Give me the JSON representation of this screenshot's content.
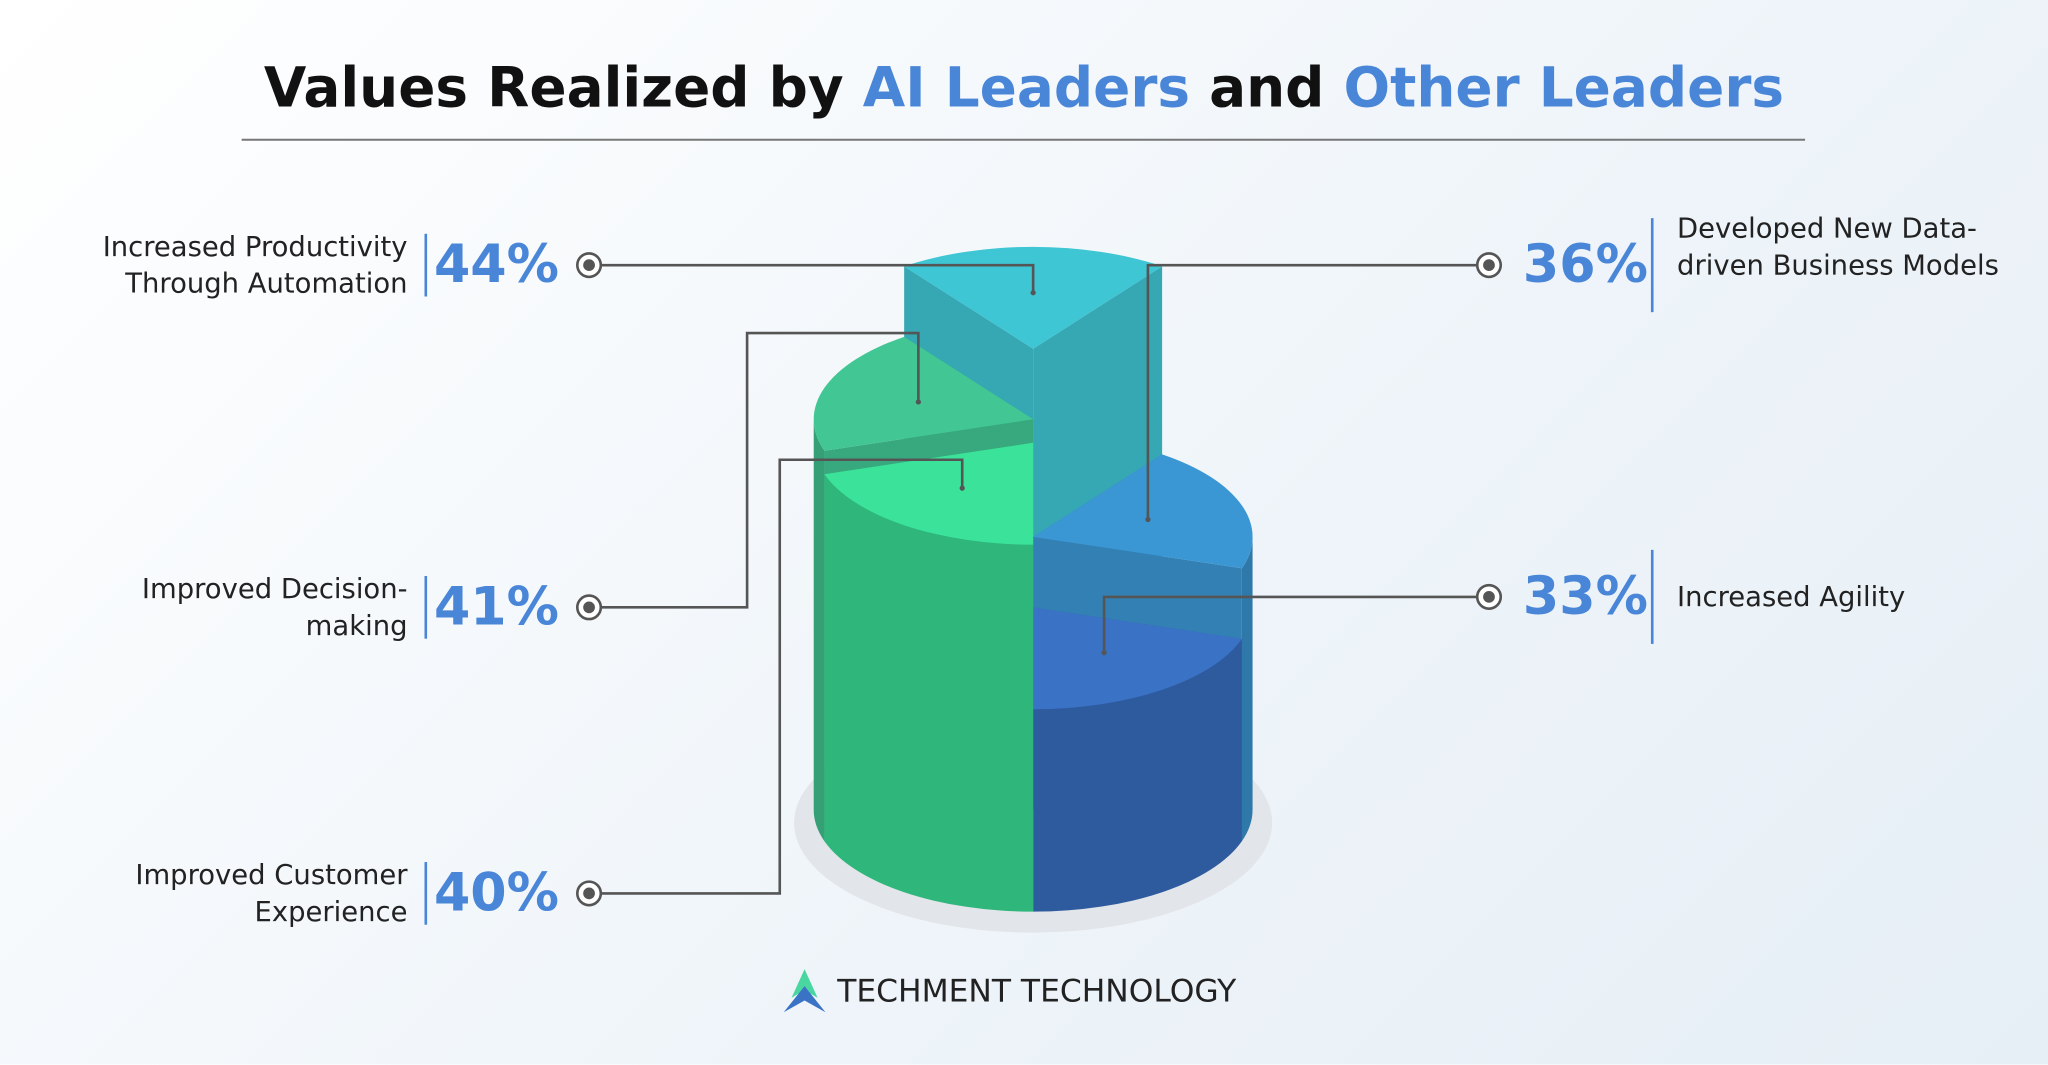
{
  "chart_data": {
    "type": "pie3d",
    "title": [
      "Values Realized by",
      "AI Leaders",
      "and",
      "Other Leaders"
    ],
    "categories": [
      "Increased Productivity Through Automation",
      "Developed New Data-driven Business Models",
      "Increased Agility",
      "Improved Customer Experience",
      "Improved Decision-making"
    ],
    "values": [
      44,
      36,
      33,
      40,
      41
    ],
    "value_labels": [
      "44%",
      "36%",
      "33%",
      "40%",
      "41%"
    ],
    "colors": [
      "#3ec6d4",
      "#3b97d4",
      "#3a72c6",
      "#3be39a",
      "#42c794"
    ],
    "footer": "TECHMENT TECHNOLOGY"
  }
}
